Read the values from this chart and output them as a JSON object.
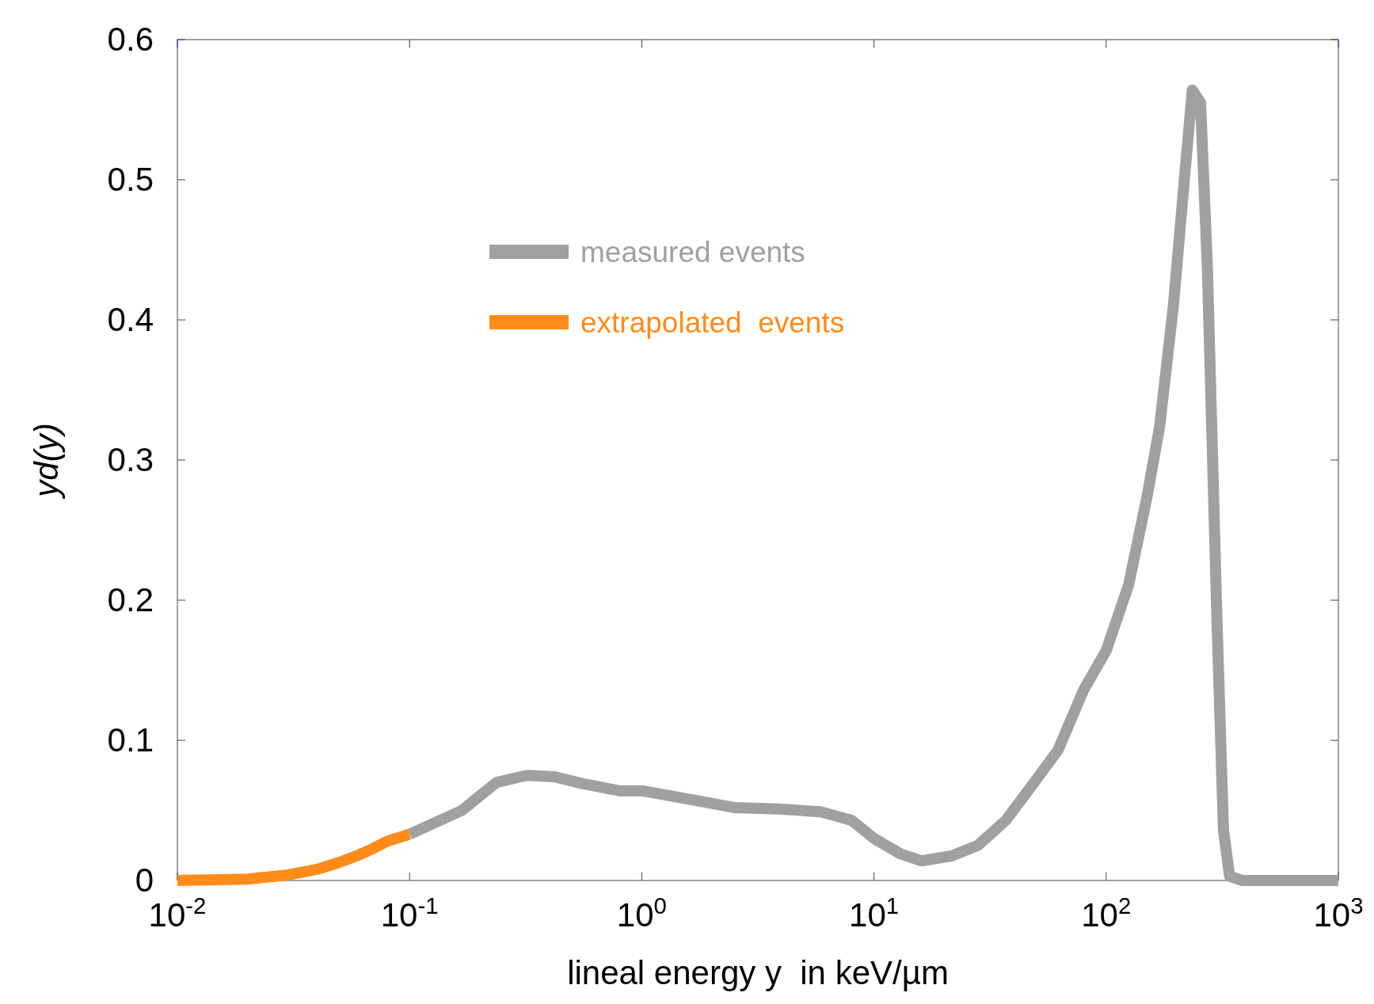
{
  "chart_data": {
    "type": "line",
    "xlabel": "lineal energy y  in keV/µm",
    "ylabel": "yd(y)",
    "log": "x",
    "xlim": [
      0.01,
      1000
    ],
    "ylim": [
      0,
      0.6
    ],
    "xticks": [
      {
        "value": 0.01,
        "label": "10$^{-2}$"
      },
      {
        "value": 0.1,
        "label": "10$^{-1}$"
      },
      {
        "value": 1,
        "label": "10$^{0}$"
      },
      {
        "value": 10,
        "label": "10$^{1}$"
      },
      {
        "value": 100,
        "label": "10$^{2}$"
      },
      {
        "value": 1000,
        "label": "10$^{3}$"
      }
    ],
    "yticks": [
      0,
      0.1,
      0.2,
      0.3,
      0.4,
      0.5,
      0.6
    ],
    "grid": false,
    "legend": "top left",
    "line_style": "solid",
    "series": [
      {
        "name": "measured events",
        "color": "#a0a0a0",
        "x": [
          0.1,
          0.168,
          0.237,
          0.32,
          0.42,
          0.56,
          0.8,
          1,
          1.6,
          2.5,
          3.9,
          5.9,
          8,
          10,
          13,
          16,
          21.6,
          28,
          37,
          48,
          62,
          80,
          100,
          125,
          150,
          170,
          195,
          220,
          235,
          255,
          273,
          300,
          320,
          340,
          385,
          1000
        ],
        "values": [
          0.033,
          0.05,
          0.07,
          0.075,
          0.074,
          0.069,
          0.064,
          0.064,
          0.058,
          0.052,
          0.051,
          0.049,
          0.043,
          0.03,
          0.019,
          0.014,
          0.0175,
          0.025,
          0.043,
          0.068,
          0.093,
          0.136,
          0.164,
          0.211,
          0.274,
          0.324,
          0.411,
          0.511,
          0.564,
          0.555,
          0.436,
          0.186,
          0.036,
          0.003,
          0,
          0
        ]
      },
      {
        "name": "extrapolated  events",
        "color": "#ff8c1a",
        "x": [
          0.01,
          0.02,
          0.03,
          0.04,
          0.05,
          0.06,
          0.07,
          0.08,
          0.1
        ],
        "values": [
          0,
          0.001,
          0.004,
          0.008,
          0.013,
          0.018,
          0.023,
          0.028,
          0.033
        ]
      }
    ]
  }
}
